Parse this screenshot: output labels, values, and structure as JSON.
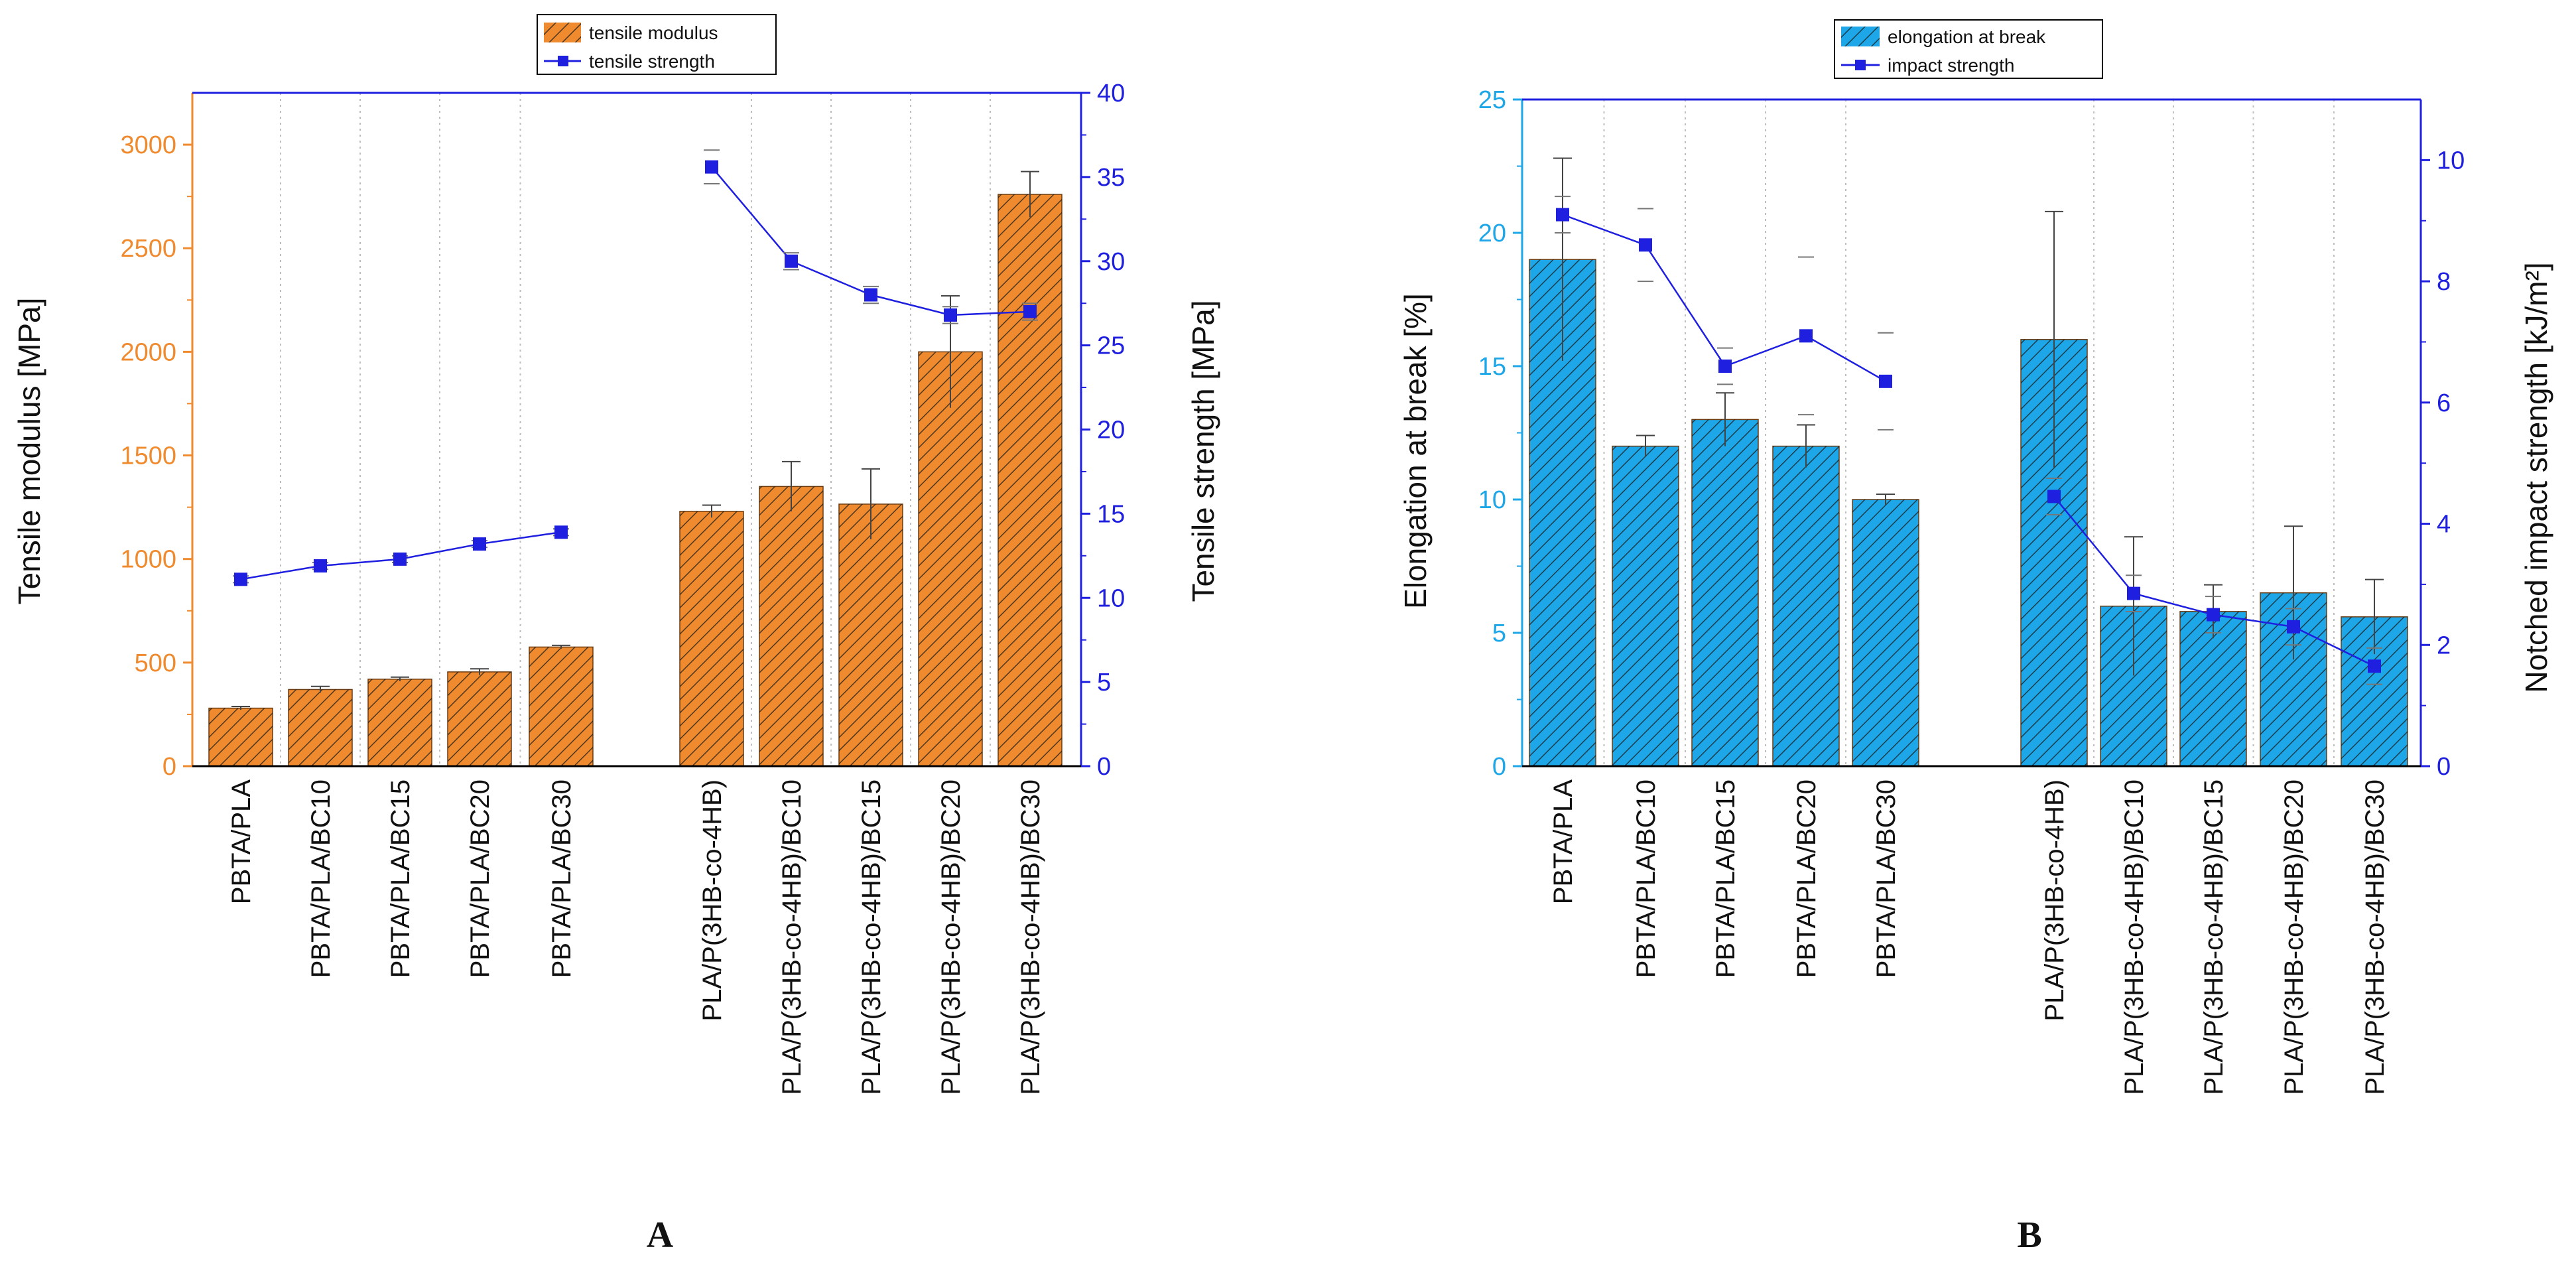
{
  "chart_data": [
    {
      "panel_label": "A",
      "type": "bar+line",
      "title": "",
      "categories": [
        "PBTA/PLA",
        "PBTA/PLA/BC10",
        "PBTA/PLA/BC15",
        "PBTA/PLA/BC20",
        "PBTA/PLA/BC30",
        "PLA/P(3HB-co-4HB)",
        "PLA/P(3HB-co-4HB)/BC10",
        "PLA/P(3HB-co-4HB)/BC15",
        "PLA/P(3HB-co-4HB)/BC20",
        "PLA/P(3HB-co-4HB)/BC30"
      ],
      "ylabel": "Tensile modulus [MPa]",
      "y2label": "Tensile strength [MPa]",
      "ylim": [
        0,
        3250
      ],
      "y2lim": [
        0,
        40
      ],
      "yticks": [
        0,
        500,
        1000,
        1500,
        2000,
        2500,
        3000
      ],
      "y2ticks": [
        0,
        5,
        10,
        15,
        20,
        25,
        30,
        35,
        40
      ],
      "bar_color": "#ef8a2e",
      "line_color": "#1f1fe0",
      "left_axis_color": "#ef8a2e",
      "right_axis_color": "#1f1fe0",
      "legend": [
        "tensile modulus",
        "tensile strength"
      ],
      "series": [
        {
          "name": "tensile modulus",
          "kind": "bar",
          "values": [
            280,
            370,
            420,
            455,
            575,
            1230,
            1350,
            1265,
            2000,
            2760
          ],
          "err": [
            8,
            15,
            10,
            15,
            8,
            30,
            120,
            170,
            270,
            110
          ]
        },
        {
          "name": "tensile strength",
          "kind": "line",
          "values": [
            11.1,
            11.9,
            12.3,
            13.2,
            13.9,
            35.6,
            30.0,
            28.0,
            26.8,
            27.0
          ],
          "err": [
            0.2,
            0.2,
            0.2,
            0.2,
            0.2,
            1.0,
            0.5,
            0.5,
            0.5,
            0.5
          ]
        }
      ]
    },
    {
      "panel_label": "B",
      "type": "bar+line",
      "title": "",
      "categories": [
        "PBTA/PLA",
        "PBTA/PLA/BC10",
        "PBTA/PLA/BC15",
        "PBTA/PLA/BC20",
        "PBTA/PLA/BC30",
        "PLA/P(3HB-co-4HB)",
        "PLA/P(3HB-co-4HB)/BC10",
        "PLA/P(3HB-co-4HB)/BC15",
        "PLA/P(3HB-co-4HB)/BC20",
        "PLA/P(3HB-co-4HB)/BC30"
      ],
      "ylabel": "Elongation at break [%]",
      "y2label": "Notched impact strength [kJ/m²]",
      "ylim": [
        0,
        25
      ],
      "y2lim": [
        0,
        11
      ],
      "yticks": [
        0,
        5,
        10,
        15,
        20,
        25
      ],
      "y2ticks": [
        0,
        2,
        4,
        6,
        8,
        10
      ],
      "bar_color": "#1ea7e8",
      "line_color": "#1f1fe0",
      "left_axis_color": "#1ea7e8",
      "right_axis_color": "#1f1fe0",
      "legend": [
        "elongation at break",
        "impact strength"
      ],
      "series": [
        {
          "name": "elongation at break",
          "kind": "bar",
          "values": [
            19.0,
            12.0,
            13.0,
            12.0,
            10.0,
            16.0,
            6.0,
            5.8,
            6.5,
            5.6
          ],
          "err": [
            3.8,
            0.4,
            1.0,
            0.8,
            0.2,
            4.8,
            2.6,
            1.0,
            2.5,
            1.4
          ]
        },
        {
          "name": "impact strength",
          "kind": "line",
          "values": [
            9.1,
            8.6,
            6.6,
            7.1,
            6.35,
            4.45,
            2.85,
            2.5,
            2.3,
            1.65
          ],
          "err": [
            0.3,
            0.6,
            0.3,
            1.3,
            0.8,
            0.3,
            0.3,
            0.3,
            0.3,
            0.3
          ]
        }
      ]
    }
  ]
}
